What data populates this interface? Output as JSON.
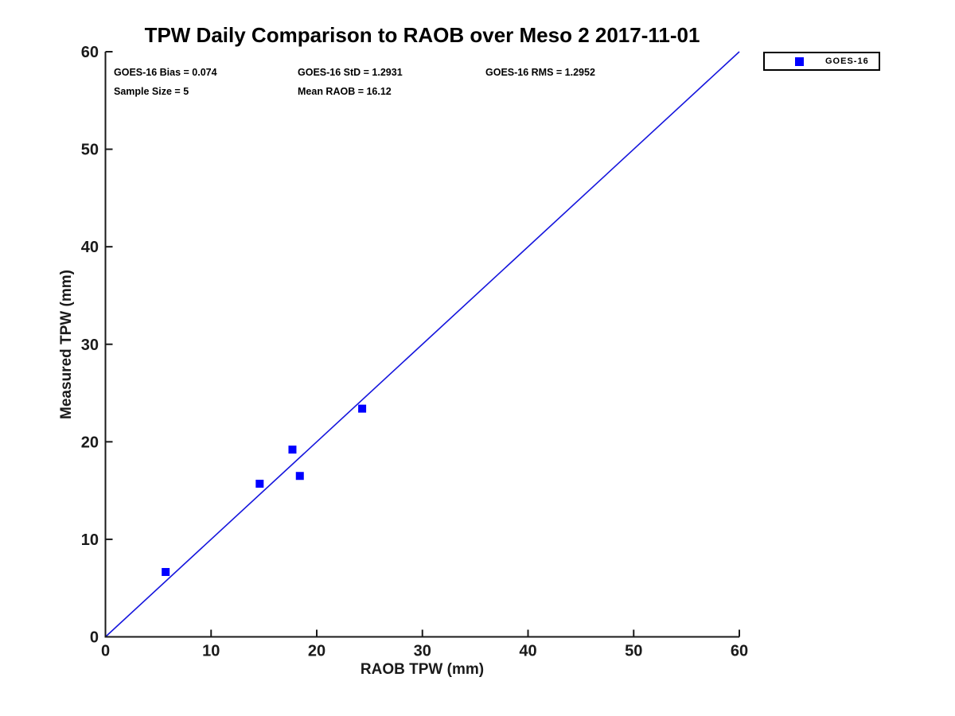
{
  "title": "TPW Daily Comparison to RAOB over Meso 2 2017-11-01",
  "stats": {
    "bias": "GOES-16 Bias = 0.074",
    "std": "GOES-16 StD = 1.2931",
    "rms": "GOES-16 RMS = 1.2952",
    "sample_size": "Sample Size = 5",
    "mean_raob": "Mean RAOB = 16.12"
  },
  "legend": {
    "label": "GOES-16",
    "marker_color": "#0000ff"
  },
  "chart_data": {
    "type": "scatter",
    "title": "TPW Daily Comparison to RAOB over Meso 2 2017-11-01",
    "xlabel": "RAOB TPW (mm)",
    "ylabel": "Measured TPW (mm)",
    "xlim": [
      0,
      60
    ],
    "ylim": [
      0,
      60
    ],
    "xticks": [
      0,
      10,
      20,
      30,
      40,
      50,
      60
    ],
    "yticks": [
      0,
      10,
      20,
      30,
      40,
      50,
      60
    ],
    "grid": false,
    "legend_position": "outside-top-right",
    "series": [
      {
        "name": "GOES-16",
        "marker": "filled-square",
        "color": "#0000ff",
        "points": [
          [
            5.7,
            6.65
          ],
          [
            14.6,
            15.7
          ],
          [
            17.7,
            19.2
          ],
          [
            18.4,
            16.5
          ],
          [
            24.3,
            23.4
          ]
        ]
      }
    ],
    "reference_line": {
      "description": "1:1 identity line",
      "from": [
        0,
        0
      ],
      "to": [
        60,
        60
      ],
      "color": "#1515dd"
    },
    "axis_color": "#1a1a1a"
  }
}
